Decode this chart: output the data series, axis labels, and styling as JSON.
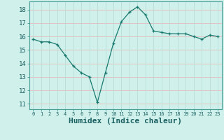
{
  "x": [
    0,
    1,
    2,
    3,
    4,
    5,
    6,
    7,
    8,
    9,
    10,
    11,
    12,
    13,
    14,
    15,
    16,
    17,
    18,
    19,
    20,
    21,
    22,
    23
  ],
  "y": [
    15.8,
    15.6,
    15.6,
    15.4,
    14.6,
    13.8,
    13.3,
    13.0,
    11.1,
    13.3,
    15.5,
    17.1,
    17.8,
    18.2,
    17.6,
    16.4,
    16.3,
    16.2,
    16.2,
    16.2,
    16.0,
    15.8,
    16.1,
    16.0
  ],
  "line_color": "#1a7a6e",
  "marker": "+",
  "marker_color": "#1a7a6e",
  "xlabel": "Humidex (Indice chaleur)",
  "xlabel_fontsize": 8,
  "yticks": [
    11,
    12,
    13,
    14,
    15,
    16,
    17,
    18
  ],
  "xtick_labels": [
    "0",
    "1",
    "2",
    "3",
    "4",
    "5",
    "6",
    "7",
    "8",
    "9",
    "10",
    "11",
    "12",
    "13",
    "14",
    "15",
    "16",
    "17",
    "18",
    "19",
    "20",
    "21",
    "22",
    "23"
  ],
  "ylim": [
    10.6,
    18.6
  ],
  "xlim": [
    -0.5,
    23.5
  ],
  "bg_color": "#cff0eb",
  "grid_color_h": "#e8b8b8",
  "grid_color_v": "#b8ddd8",
  "grid_linewidth": 0.6,
  "spine_color": "#4a9e96",
  "tick_color": "#1a7a6e",
  "label_color": "#1a6060"
}
